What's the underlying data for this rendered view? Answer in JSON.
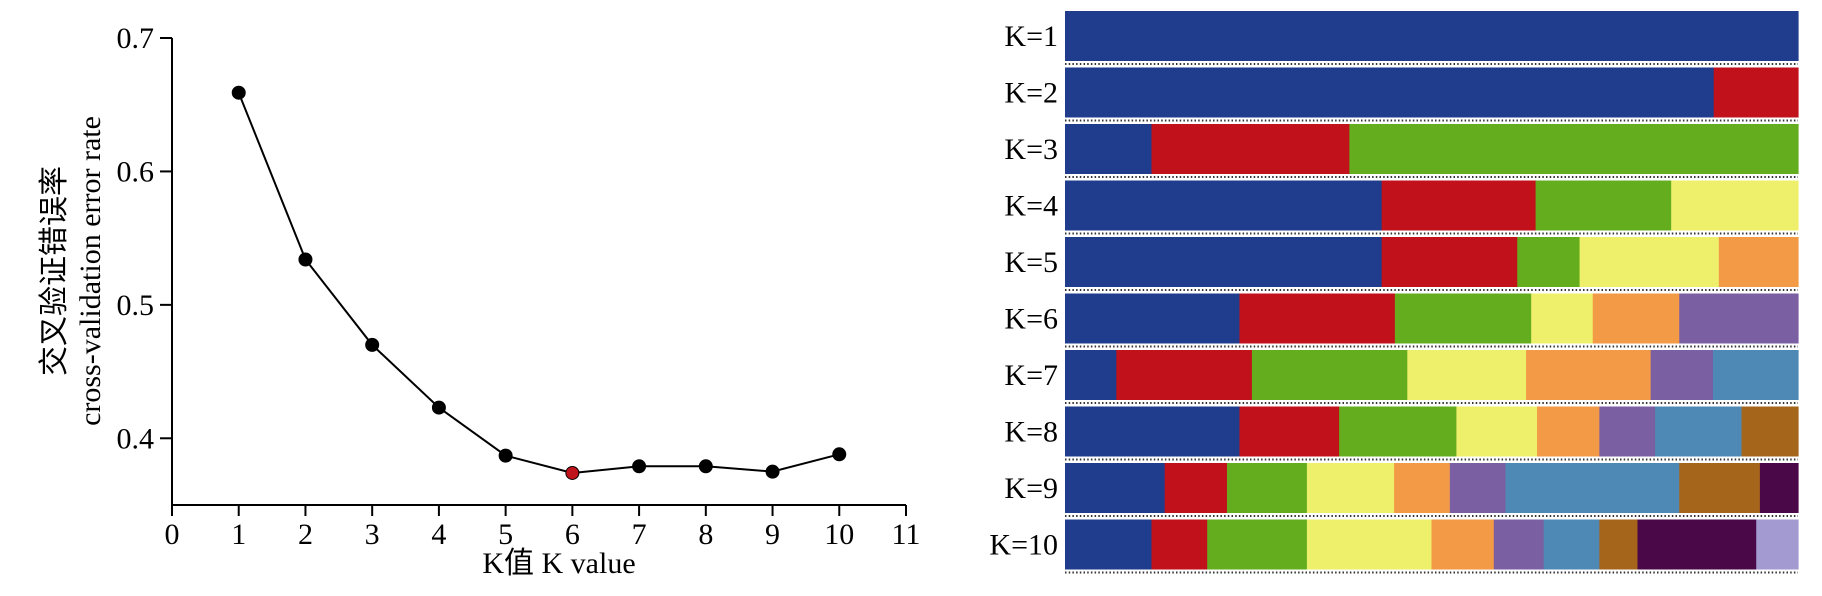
{
  "chart_data": [
    {
      "type": "line",
      "xlabel": "K值 K value",
      "ylabel_cn": "交叉验证错误率",
      "ylabel_en": "cross-validation error rate",
      "xlim": [
        0,
        11
      ],
      "ylim": [
        0.35,
        0.7
      ],
      "x_ticks": [
        "0",
        "1",
        "2",
        "3",
        "4",
        "5",
        "6",
        "7",
        "8",
        "9",
        "10",
        "11"
      ],
      "y_ticks": [
        "0.4",
        "0.5",
        "0.6",
        "0.7"
      ],
      "x": [
        1,
        2,
        3,
        4,
        5,
        6,
        7,
        8,
        9,
        10
      ],
      "y": [
        0.659,
        0.534,
        0.47,
        0.423,
        0.387,
        0.374,
        0.379,
        0.379,
        0.375,
        0.388
      ],
      "highlight_x": 6,
      "marker_color": "#000000",
      "highlight_color": "#c0141c"
    },
    {
      "type": "bar",
      "stacked": true,
      "panel_labels": [
        "K=1",
        "K=2",
        "K=3",
        "K=4",
        "K=5",
        "K=6",
        "K=7",
        "K=8",
        "K=9",
        "K=10"
      ],
      "colors": {
        "blue": "#1f3d8c",
        "red": "#c1121c",
        "green": "#63ad1f",
        "yellow": "#eef06c",
        "orange": "#f29a45",
        "purple": "#7b5fa3",
        "steel": "#4e88b4",
        "brown": "#a5661b",
        "darkpurple": "#4a0848",
        "lavender": "#a29ad0"
      },
      "panels": [
        {
          "k": 1,
          "segments": [
            [
              "blue",
              1.0
            ]
          ]
        },
        {
          "k": 2,
          "segments": [
            [
              "blue",
              0.885
            ],
            [
              "red",
              0.115
            ]
          ]
        },
        {
          "k": 3,
          "segments": [
            [
              "blue",
              0.118
            ],
            [
              "red",
              0.27
            ],
            [
              "green",
              0.612
            ]
          ]
        },
        {
          "k": 4,
          "segments": [
            [
              "blue",
              0.432
            ],
            [
              "red",
              0.21
            ],
            [
              "green",
              0.185
            ],
            [
              "yellow",
              0.173
            ]
          ]
        },
        {
          "k": 5,
          "segments": [
            [
              "blue",
              0.432
            ],
            [
              "red",
              0.185
            ],
            [
              "green",
              0.085
            ],
            [
              "yellow",
              0.19
            ],
            [
              "orange",
              0.108
            ]
          ]
        },
        {
          "k": 6,
          "segments": [
            [
              "blue",
              0.238
            ],
            [
              "red",
              0.212
            ],
            [
              "green",
              0.186
            ],
            [
              "yellow",
              0.084
            ],
            [
              "orange",
              0.118
            ],
            [
              "purple",
              0.162
            ]
          ]
        },
        {
          "k": 7,
          "segments": [
            [
              "blue",
              0.07
            ],
            [
              "red",
              0.185
            ],
            [
              "green",
              0.212
            ],
            [
              "yellow",
              0.162
            ],
            [
              "orange",
              0.17
            ],
            [
              "purple",
              0.085
            ],
            [
              "steel",
              0.116
            ]
          ]
        },
        {
          "k": 8,
          "segments": [
            [
              "blue",
              0.238
            ],
            [
              "red",
              0.136
            ],
            [
              "green",
              0.16
            ],
            [
              "yellow",
              0.11
            ],
            [
              "orange",
              0.085
            ],
            [
              "purple",
              0.076
            ],
            [
              "steel",
              0.118
            ],
            [
              "brown",
              0.077
            ]
          ]
        },
        {
          "k": 9,
          "segments": [
            [
              "blue",
              0.136
            ],
            [
              "red",
              0.085
            ],
            [
              "green",
              0.109
            ],
            [
              "yellow",
              0.119
            ],
            [
              "orange",
              0.076
            ],
            [
              "purple",
              0.076
            ],
            [
              "steel",
              0.237
            ],
            [
              "brown",
              0.11
            ],
            [
              "darkpurple",
              0.052
            ]
          ]
        },
        {
          "k": 10,
          "segments": [
            [
              "blue",
              0.118
            ],
            [
              "red",
              0.076
            ],
            [
              "green",
              0.136
            ],
            [
              "yellow",
              0.17
            ],
            [
              "orange",
              0.085
            ],
            [
              "purple",
              0.068
            ],
            [
              "steel",
              0.076
            ],
            [
              "brown",
              0.052
            ],
            [
              "darkpurple",
              0.162
            ],
            [
              "lavender",
              0.057
            ]
          ]
        }
      ]
    }
  ]
}
